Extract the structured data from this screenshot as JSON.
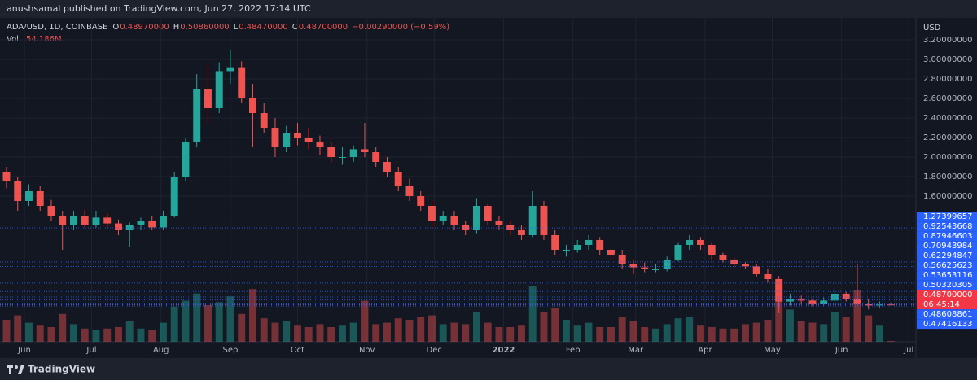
{
  "header": {
    "published": "anushsamal published on TradingView.com, Jun 27, 2022 17:14 UTC"
  },
  "footer": {
    "brand": "TradingView"
  },
  "chart_data": {
    "type": "candlestick",
    "legend": {
      "symbol": "ADA/USD, 1D, COINBASE",
      "o_key": "O",
      "o": "0.48970000",
      "h_key": "H",
      "h": "0.50860000",
      "l_key": "L",
      "l": "0.48470000",
      "c_key": "C",
      "c": "0.48700000",
      "change": "−0.00290000 (−0.59%)",
      "vol_key": "Vol",
      "vol": "54.186M"
    },
    "currency": "USD",
    "up_color": "#26a69a",
    "down_color": "#ef5350",
    "ylim": [
      0.108,
      3.442
    ],
    "yticks": [
      {
        "value": 1.6,
        "label": "1.60000000"
      },
      {
        "value": 1.8,
        "label": "1.80000000"
      },
      {
        "value": 2.0,
        "label": "2.00000000"
      },
      {
        "value": 2.2,
        "label": "2.20000000"
      },
      {
        "value": 2.4,
        "label": "2.40000000"
      },
      {
        "value": 2.6,
        "label": "2.60000000"
      },
      {
        "value": 2.8,
        "label": "2.80000000"
      },
      {
        "value": 3.0,
        "label": "3.00000000"
      },
      {
        "value": 3.2,
        "label": "3.20000000"
      }
    ],
    "xlim": [
      -0.58,
      81.24
    ],
    "xticks": [
      {
        "value": 1.6,
        "label": "Jun"
      },
      {
        "value": 7.6,
        "label": "Jul"
      },
      {
        "value": 13.8,
        "label": "Aug"
      },
      {
        "value": 20,
        "label": "Sep"
      },
      {
        "value": 26,
        "label": "Oct"
      },
      {
        "value": 32.2,
        "label": "Nov"
      },
      {
        "value": 38.2,
        "label": "Dec"
      },
      {
        "value": 44.4,
        "label": "2022"
      },
      {
        "value": 50.6,
        "label": "Feb"
      },
      {
        "value": 56.2,
        "label": "Mar"
      },
      {
        "value": 62.4,
        "label": "Apr"
      },
      {
        "value": 68.4,
        "label": "May"
      },
      {
        "value": 74.6,
        "label": "Jun"
      },
      {
        "value": 80.6,
        "label": "Jul"
      }
    ],
    "grid": true,
    "price_lines": [
      1.27399657,
      0.92543668,
      0.87946603,
      0.70943984,
      0.62294847,
      0.56625623,
      0.53653116,
      0.50320305,
      {
        "value": 0.487,
        "label": "0.48700000",
        "countdown": "06:45:14"
      },
      0.48608861,
      0.47416133
    ],
    "price_line_color": "#2962ff",
    "current_color": "#f23645",
    "open": [
      1.85,
      1.75,
      1.55,
      1.65,
      1.5,
      1.4,
      1.3,
      1.4,
      1.3,
      1.38,
      1.32,
      1.25,
      1.3,
      1.35,
      1.28,
      1.4,
      1.8,
      2.15,
      2.7,
      2.5,
      2.88,
      2.92,
      2.6,
      2.45,
      2.3,
      2.1,
      2.25,
      2.2,
      2.15,
      2.1,
      2.0,
      2.0,
      2.08,
      2.05,
      1.95,
      1.85,
      1.7,
      1.6,
      1.5,
      1.35,
      1.4,
      1.3,
      1.25,
      1.5,
      1.35,
      1.3,
      1.25,
      1.2,
      1.5,
      1.2,
      1.05,
      1.05,
      1.1,
      1.15,
      1.05,
      1.0,
      0.9,
      0.87,
      0.85,
      0.85,
      0.95,
      1.1,
      1.15,
      1.1,
      1.0,
      0.95,
      0.9,
      0.88,
      0.8,
      0.75,
      0.52,
      0.55,
      0.53,
      0.5,
      0.53,
      0.6,
      0.55,
      0.5,
      0.48,
      0.4897
    ],
    "high": [
      1.9,
      1.8,
      1.72,
      1.7,
      1.56,
      1.45,
      1.45,
      1.46,
      1.45,
      1.42,
      1.36,
      1.33,
      1.38,
      1.4,
      1.45,
      1.85,
      2.2,
      2.85,
      2.95,
      2.97,
      3.1,
      2.98,
      2.75,
      2.55,
      2.4,
      2.32,
      2.35,
      2.3,
      2.22,
      2.15,
      2.1,
      2.12,
      2.35,
      2.1,
      2.0,
      1.9,
      1.78,
      1.65,
      1.55,
      1.45,
      1.45,
      1.35,
      1.58,
      1.52,
      1.4,
      1.35,
      1.3,
      1.65,
      1.55,
      1.25,
      1.1,
      1.15,
      1.2,
      1.18,
      1.08,
      1.05,
      0.95,
      0.92,
      0.9,
      0.98,
      1.12,
      1.2,
      1.18,
      1.12,
      1.02,
      0.97,
      0.92,
      0.9,
      0.85,
      0.78,
      0.6,
      0.58,
      0.55,
      0.56,
      0.64,
      0.62,
      0.9,
      0.55,
      0.52,
      0.5086
    ],
    "low": [
      1.68,
      1.45,
      1.5,
      1.45,
      1.35,
      1.05,
      1.25,
      1.28,
      1.28,
      1.28,
      1.2,
      1.08,
      1.25,
      1.25,
      1.25,
      1.38,
      1.75,
      2.1,
      2.35,
      2.45,
      2.75,
      2.55,
      2.1,
      2.25,
      2.0,
      2.05,
      2.12,
      2.08,
      2.02,
      1.95,
      1.92,
      1.95,
      2.0,
      1.9,
      1.8,
      1.65,
      1.55,
      1.45,
      1.28,
      1.3,
      1.25,
      1.2,
      1.22,
      1.3,
      1.25,
      1.2,
      1.15,
      1.18,
      1.15,
      1.0,
      0.98,
      1.02,
      1.05,
      1.0,
      0.95,
      0.85,
      0.8,
      0.82,
      0.82,
      0.83,
      0.93,
      1.05,
      1.05,
      0.95,
      0.92,
      0.88,
      0.85,
      0.77,
      0.72,
      0.4,
      0.48,
      0.5,
      0.47,
      0.48,
      0.51,
      0.52,
      0.5,
      0.44,
      0.46,
      0.4847
    ],
    "close": [
      1.75,
      1.55,
      1.65,
      1.5,
      1.4,
      1.3,
      1.4,
      1.3,
      1.38,
      1.32,
      1.25,
      1.3,
      1.35,
      1.28,
      1.4,
      1.8,
      2.15,
      2.7,
      2.5,
      2.88,
      2.92,
      2.6,
      2.45,
      2.3,
      2.1,
      2.25,
      2.2,
      2.15,
      2.1,
      2.0,
      2.0,
      2.08,
      2.05,
      1.95,
      1.85,
      1.7,
      1.6,
      1.5,
      1.35,
      1.4,
      1.3,
      1.25,
      1.5,
      1.35,
      1.3,
      1.25,
      1.2,
      1.5,
      1.2,
      1.05,
      1.05,
      1.1,
      1.15,
      1.05,
      1.0,
      0.9,
      0.87,
      0.85,
      0.85,
      0.95,
      1.1,
      1.15,
      1.1,
      1.0,
      0.95,
      0.9,
      0.88,
      0.8,
      0.75,
      0.52,
      0.55,
      0.53,
      0.5,
      0.53,
      0.6,
      0.55,
      0.5,
      0.48,
      0.49,
      0.487
    ],
    "volume": [
      1500,
      1800,
      1300,
      1100,
      1000,
      1900,
      1200,
      900,
      800,
      900,
      1000,
      1400,
      900,
      800,
      1300,
      2400,
      2800,
      3300,
      2500,
      2700,
      3100,
      1900,
      3600,
      1600,
      1300,
      1400,
      1100,
      1000,
      1200,
      1000,
      1100,
      1300,
      2800,
      1200,
      1300,
      1600,
      1500,
      1700,
      1800,
      1200,
      1300,
      1200,
      2000,
      1300,
      1000,
      1000,
      1100,
      3800,
      2000,
      2300,
      1500,
      1100,
      1300,
      1000,
      1000,
      1700,
      1400,
      1000,
      900,
      1200,
      1600,
      1700,
      1100,
      1000,
      900,
      900,
      1200,
      1300,
      1500,
      4000,
      2200,
      1400,
      1300,
      1200,
      2000,
      1700,
      3500,
      1800,
      1100,
      54.186
    ]
  }
}
